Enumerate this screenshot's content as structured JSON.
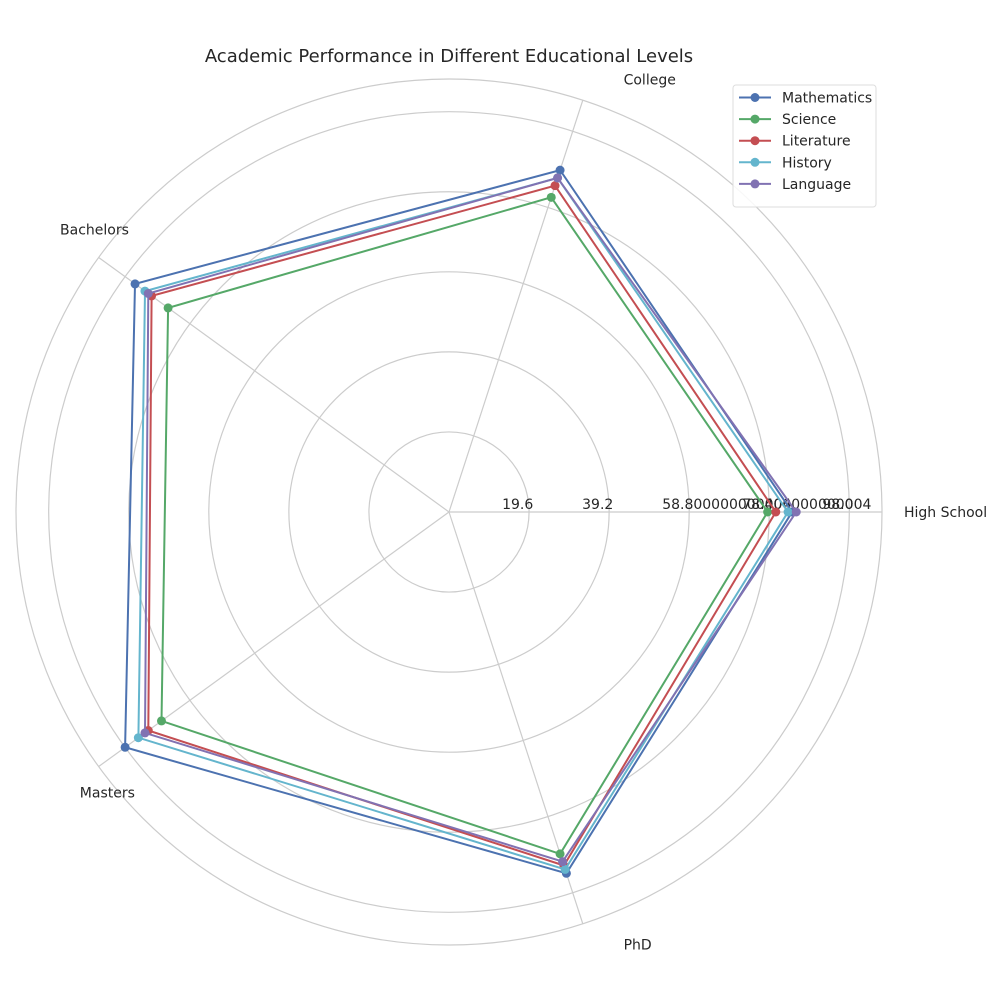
{
  "chart_data": {
    "type": "radar",
    "title": "Academic Performance in Different Educational Levels",
    "categories": [
      "High School",
      "College",
      "Bachelors",
      "Masters",
      "PhD"
    ],
    "rlim": [
      0,
      106
    ],
    "rticks": [
      19.6,
      39.2,
      58.8,
      78.4,
      98.0
    ],
    "rtick_labels": [
      "19.6",
      "39.2",
      "58.800000000004",
      "78.400000000004",
      "98.0"
    ],
    "grid": true,
    "legend_position": "top-right",
    "series": [
      {
        "name": "Mathematics",
        "color": "#4c72b0",
        "values": [
          84,
          88,
          95,
          98,
          93
        ]
      },
      {
        "name": "Science",
        "color": "#55a868",
        "values": [
          78,
          81,
          85,
          87,
          88
        ]
      },
      {
        "name": "Literature",
        "color": "#c44e52",
        "values": [
          80,
          84,
          90,
          91,
          91
        ]
      },
      {
        "name": "History",
        "color": "#64b5cd",
        "values": [
          83,
          86,
          92,
          94,
          92
        ]
      },
      {
        "name": "Language",
        "color": "#8172b2",
        "values": [
          85,
          86,
          91,
          92,
          90
        ]
      }
    ]
  }
}
